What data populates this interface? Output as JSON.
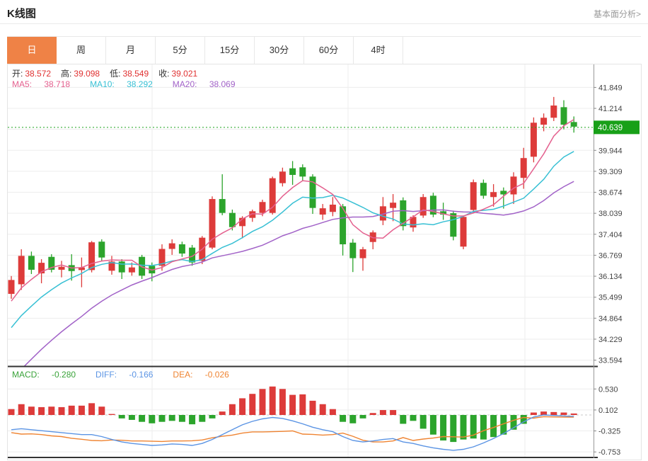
{
  "header": {
    "title": "K线图",
    "link": "基本面分析>"
  },
  "tabs": [
    {
      "key": "day",
      "label": "日",
      "active": true
    },
    {
      "key": "week",
      "label": "周",
      "active": false
    },
    {
      "key": "month",
      "label": "月",
      "active": false
    },
    {
      "key": "5min",
      "label": "5分",
      "active": false
    },
    {
      "key": "15min",
      "label": "15分",
      "active": false
    },
    {
      "key": "30min",
      "label": "30分",
      "active": false
    },
    {
      "key": "60min",
      "label": "60分",
      "active": false
    },
    {
      "key": "4hour",
      "label": "4时",
      "active": false
    }
  ],
  "readout": {
    "open_label": "开:",
    "open": "38.572",
    "high_label": "高:",
    "high": "39.098",
    "low_label": "低:",
    "low": "38.549",
    "close_label": "收:",
    "close": "39.021",
    "ma5_label": "MA5:",
    "ma5": "38.718",
    "ma10_label": "MA10:",
    "ma10": "38.292",
    "ma20_label": "MA20:",
    "ma20": "38.069"
  },
  "macd_readout": {
    "macd_label": "MACD:",
    "macd": "-0.280",
    "diff_label": "DIFF:",
    "diff": "-0.166",
    "dea_label": "DEA:",
    "dea": "-0.026"
  },
  "colors": {
    "up": "#dd3b3a",
    "down": "#2ca42c",
    "ma5": "#e4618f",
    "ma10": "#38c0d4",
    "ma20": "#a263c8",
    "diff_line": "#5b94e4",
    "dea_line": "#ef8432",
    "macd_text": "#3aa33a",
    "price_badge": "#18a018",
    "current_line": "#1ca41c",
    "tab_active": "#ef8246",
    "value_red": "#e03131"
  },
  "chart_data": {
    "type": "candlestick+macd",
    "title": "K线图 daily candles",
    "legend": [
      "MA5",
      "MA10",
      "MA20",
      "MACD",
      "DIFF",
      "DEA"
    ],
    "price_axis_ticks": [
      41.849,
      41.214,
      40.579,
      39.944,
      39.309,
      38.674,
      38.039,
      37.404,
      36.769,
      36.134,
      35.499,
      34.864,
      34.229,
      33.594
    ],
    "current_price": "40.639",
    "current_price_value": 40.639,
    "grid": true,
    "candles_ohlc": [
      [
        35.6,
        36.14,
        35.45,
        36.02
      ],
      [
        35.89,
        36.95,
        35.72,
        36.75
      ],
      [
        36.75,
        36.88,
        36.2,
        36.33
      ],
      [
        36.22,
        36.65,
        35.92,
        36.54
      ],
      [
        36.72,
        36.8,
        36.25,
        36.33
      ],
      [
        36.33,
        36.6,
        36.1,
        36.42
      ],
      [
        36.47,
        36.8,
        36.0,
        36.29
      ],
      [
        36.32,
        36.7,
        35.8,
        36.4
      ],
      [
        36.32,
        37.2,
        36.25,
        37.16
      ],
      [
        37.18,
        37.25,
        36.6,
        36.7
      ],
      [
        36.3,
        36.75,
        36.18,
        36.58
      ],
      [
        36.58,
        36.65,
        36.05,
        36.25
      ],
      [
        36.25,
        36.55,
        36.15,
        36.4
      ],
      [
        36.72,
        36.78,
        36.05,
        36.15
      ],
      [
        36.45,
        36.55,
        35.98,
        36.22
      ],
      [
        36.45,
        37.1,
        36.3,
        36.96
      ],
      [
        36.96,
        37.25,
        36.78,
        37.13
      ],
      [
        37.1,
        37.18,
        36.72,
        36.82
      ],
      [
        37.0,
        37.08,
        36.45,
        36.55
      ],
      [
        36.6,
        37.35,
        36.5,
        37.3
      ],
      [
        37.0,
        38.55,
        36.95,
        38.47
      ],
      [
        38.47,
        39.22,
        37.98,
        38.05
      ],
      [
        38.05,
        38.15,
        37.52,
        37.62
      ],
      [
        37.65,
        37.95,
        37.28,
        37.9
      ],
      [
        37.9,
        38.15,
        37.78,
        38.1
      ],
      [
        38.05,
        38.45,
        37.95,
        38.38
      ],
      [
        38.05,
        39.15,
        38.0,
        39.1
      ],
      [
        38.95,
        39.42,
        38.85,
        39.3
      ],
      [
        39.4,
        39.62,
        38.9,
        39.2
      ],
      [
        39.43,
        39.52,
        39.02,
        39.15
      ],
      [
        39.15,
        39.22,
        38.02,
        38.2
      ],
      [
        38.0,
        38.32,
        37.84,
        38.19
      ],
      [
        38.08,
        38.53,
        37.95,
        38.3
      ],
      [
        38.25,
        38.32,
        36.76,
        37.1
      ],
      [
        37.15,
        37.26,
        36.26,
        36.68
      ],
      [
        36.68,
        37.02,
        36.3,
        36.95
      ],
      [
        37.17,
        37.52,
        36.95,
        37.46
      ],
      [
        37.82,
        38.53,
        37.68,
        38.25
      ],
      [
        38.2,
        38.62,
        37.8,
        38.36
      ],
      [
        38.43,
        38.52,
        37.52,
        37.65
      ],
      [
        37.61,
        37.98,
        37.48,
        37.93
      ],
      [
        37.97,
        38.62,
        37.9,
        38.53
      ],
      [
        38.57,
        38.66,
        37.92,
        38.0
      ],
      [
        38.1,
        38.36,
        37.84,
        38.0
      ],
      [
        38.04,
        38.12,
        37.22,
        37.33
      ],
      [
        37.03,
        37.96,
        36.95,
        37.93
      ],
      [
        38.14,
        39.06,
        38.04,
        38.98
      ],
      [
        38.96,
        39.06,
        38.48,
        38.57
      ],
      [
        38.53,
        38.92,
        38.24,
        38.68
      ],
      [
        38.72,
        38.82,
        38.18,
        38.61
      ],
      [
        38.61,
        39.28,
        38.32,
        39.15
      ],
      [
        39.11,
        40.02,
        38.78,
        39.71
      ],
      [
        39.75,
        40.94,
        39.58,
        40.78
      ],
      [
        40.72,
        41.06,
        40.52,
        40.93
      ],
      [
        40.93,
        41.56,
        40.83,
        41.3
      ],
      [
        41.25,
        41.46,
        40.58,
        40.72
      ],
      [
        40.8,
        40.97,
        40.48,
        40.66
      ]
    ],
    "ma_periods": [
      5,
      10,
      20
    ],
    "macd": {
      "axis_ticks": [
        0.53,
        0.102,
        -0.325,
        -0.753
      ],
      "hist": [
        0.12,
        0.22,
        0.17,
        0.16,
        0.17,
        0.16,
        0.19,
        0.19,
        0.24,
        0.17,
        0.02,
        -0.07,
        -0.1,
        -0.14,
        -0.17,
        -0.14,
        -0.12,
        -0.14,
        -0.19,
        -0.14,
        -0.07,
        0.07,
        0.22,
        0.34,
        0.43,
        0.53,
        0.58,
        0.53,
        0.41,
        0.42,
        0.29,
        0.22,
        0.12,
        -0.14,
        -0.17,
        -0.07,
        0.04,
        0.1,
        0.1,
        -0.18,
        -0.12,
        -0.28,
        -0.4,
        -0.52,
        -0.55,
        -0.5,
        -0.48,
        -0.5,
        -0.45,
        -0.4,
        -0.3,
        -0.18,
        0.05,
        0.07,
        0.06,
        0.05,
        0.03
      ],
      "diff": [
        -0.3,
        -0.28,
        -0.3,
        -0.32,
        -0.34,
        -0.36,
        -0.38,
        -0.4,
        -0.4,
        -0.44,
        -0.5,
        -0.55,
        -0.58,
        -0.6,
        -0.62,
        -0.61,
        -0.59,
        -0.6,
        -0.62,
        -0.58,
        -0.5,
        -0.4,
        -0.3,
        -0.2,
        -0.13,
        -0.08,
        -0.05,
        -0.07,
        -0.12,
        -0.18,
        -0.25,
        -0.3,
        -0.34,
        -0.44,
        -0.52,
        -0.55,
        -0.53,
        -0.5,
        -0.48,
        -0.55,
        -0.58,
        -0.63,
        -0.67,
        -0.7,
        -0.72,
        -0.7,
        -0.65,
        -0.57,
        -0.48,
        -0.38,
        -0.26,
        -0.14,
        -0.04,
        0.0,
        -0.01,
        -0.02,
        -0.03
      ]
    }
  }
}
